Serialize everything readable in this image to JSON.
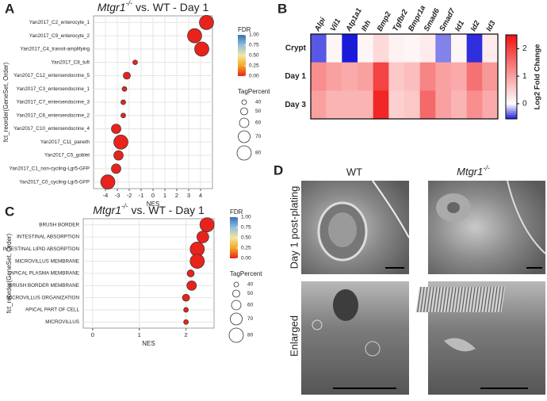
{
  "panel_labels": [
    "A",
    "B",
    "C",
    "D"
  ],
  "chart_data": [
    {
      "type": "dotplot",
      "title_gene": "Mtgr1",
      "title_sup": "-/-",
      "title_rest": "vs. WT - Day 1",
      "x_label": "NES",
      "y_label": "fct_reorder(GeneSet, Order)",
      "categories": [
        "Yan2017_C2_enterocyte_1",
        "Yan2017_C9_enterocyte_2",
        "Yan2017_C4_transit-amplifying",
        "Yan2017_C8_tuft",
        "Yan2017_C12_enteroendocrine_5",
        "Yan2017_C3_enteroendocrine_1",
        "Yan2017_C7_enteroendocrine_3",
        "Yan2017_C6_enteroendocrine_2",
        "Yan2017_C10_enteroendocrine_4",
        "Yan2017_C11_paneth",
        "Yan2017_C5_goblet",
        "Yan2017_C1_non-cycling-Lgr5-GFP",
        "Yan2017_C0_cycling-Lgr5-GFP"
      ],
      "values": [
        4.5,
        3.5,
        4.1,
        -1.5,
        -2.2,
        -2.4,
        -2.5,
        -2.5,
        -3.1,
        -2.7,
        -2.9,
        -3.1,
        -3.8
      ],
      "sizes": [
        80,
        80,
        80,
        40,
        50,
        40,
        40,
        40,
        60,
        80,
        60,
        60,
        80
      ],
      "fdr": [
        0,
        0,
        0,
        0,
        0,
        0,
        0,
        0,
        0,
        0,
        0,
        0,
        0
      ],
      "xlim": [
        -5,
        5
      ],
      "xticks": [
        -4,
        -3,
        -2,
        -1,
        0,
        1,
        2,
        3,
        4
      ],
      "grid": true,
      "color_legend_title": "FDR",
      "color_ticks": [
        {
          "value": 1,
          "label": "1.00"
        },
        {
          "value": 0.75,
          "label": "0.75"
        },
        {
          "value": 0.5,
          "label": "0.50"
        },
        {
          "value": 0.25,
          "label": "0.25"
        },
        {
          "value": 0,
          "label": "0.00"
        }
      ],
      "colors": [
        "#e8231c",
        "#f5a623",
        "#f2e6a0",
        "#8fc0e0",
        "#3b6fb5"
      ],
      "size_legend_title": "TagPercent",
      "size_ticks": [
        40,
        50,
        60,
        70,
        80
      ]
    },
    {
      "type": "heatmap",
      "colorbar_label": "Log2 Fold Change",
      "categories": [
        "Alpi",
        "Vil1",
        "Atp1a1",
        "Ihh",
        "Bmp2",
        "Tgfbr2",
        "Bmpr1a",
        "Smad6",
        "Smad7",
        "Id1",
        "Id2",
        "Id3"
      ],
      "rows": [
        "Crypt",
        "Day 1",
        "Day 3"
      ],
      "values": [
        [
          -0.4,
          0.1,
          -0.55,
          0.1,
          0.4,
          0.15,
          0.1,
          0.2,
          -0.3,
          0.1,
          -0.5,
          0.2
        ],
        [
          1.2,
          1.0,
          0.9,
          1.0,
          2.0,
          0.6,
          0.7,
          1.3,
          1.0,
          0.9,
          1.5,
          1.1
        ],
        [
          1.0,
          0.8,
          0.8,
          0.8,
          2.3,
          0.5,
          0.6,
          1.6,
          1.0,
          0.8,
          1.2,
          0.9
        ]
      ],
      "zlim": [
        -0.55,
        2.5
      ],
      "zticks": [
        0,
        1,
        2
      ],
      "colors": [
        "#1a1adb",
        "#ffffff",
        "#f01414"
      ]
    },
    {
      "type": "dotplot",
      "title_gene": "Mtgr1",
      "title_sup": "-/-",
      "title_rest": "vs. WT - Day 1",
      "x_label": "NES",
      "y_label": "fct_reorder(GeneSet, Order)",
      "categories": [
        "BRUSH BORDER",
        "INTESTINAL ABSORPTION",
        "INTESTINAL LIPID ABSORPTION",
        "MICROVILLUS MEMBRANE",
        "APICAL PLASMA MEMBRANE",
        "BRUSH BORDER MEMBRANE",
        "MICROVILLUS ORGANIZATION",
        "APICAL PART OF CELL",
        "MICROVILLUS"
      ],
      "values": [
        2.45,
        2.36,
        2.24,
        2.24,
        2.1,
        2.12,
        2.0,
        2.0,
        2.0
      ],
      "sizes": [
        80,
        70,
        80,
        80,
        50,
        60,
        50,
        40,
        40
      ],
      "fdr": [
        0,
        0,
        0,
        0,
        0,
        0,
        0,
        0,
        0
      ],
      "xlim": [
        -0.2,
        2.6
      ],
      "xticks": [
        0,
        1,
        2
      ],
      "grid": true,
      "color_legend_title": "FDR",
      "color_ticks": [
        {
          "value": 1,
          "label": "1.00"
        },
        {
          "value": 0.75,
          "label": "0.75"
        },
        {
          "value": 0.5,
          "label": "0.50"
        },
        {
          "value": 0.25,
          "label": "0.25"
        },
        {
          "value": 0,
          "label": "0.00"
        }
      ],
      "colors": [
        "#e8231c",
        "#f5a623",
        "#f2e6a0",
        "#8fc0e0",
        "#3b6fb5"
      ],
      "size_legend_title": "TagPercent",
      "size_ticks": [
        40,
        50,
        60,
        70,
        80
      ]
    }
  ],
  "micrographs": {
    "columns": [
      "WT"
    ],
    "column_gene": "Mtgr1",
    "column_sup": "-/-",
    "rows": [
      "Day 1 post-plating",
      "Enlarged"
    ]
  }
}
